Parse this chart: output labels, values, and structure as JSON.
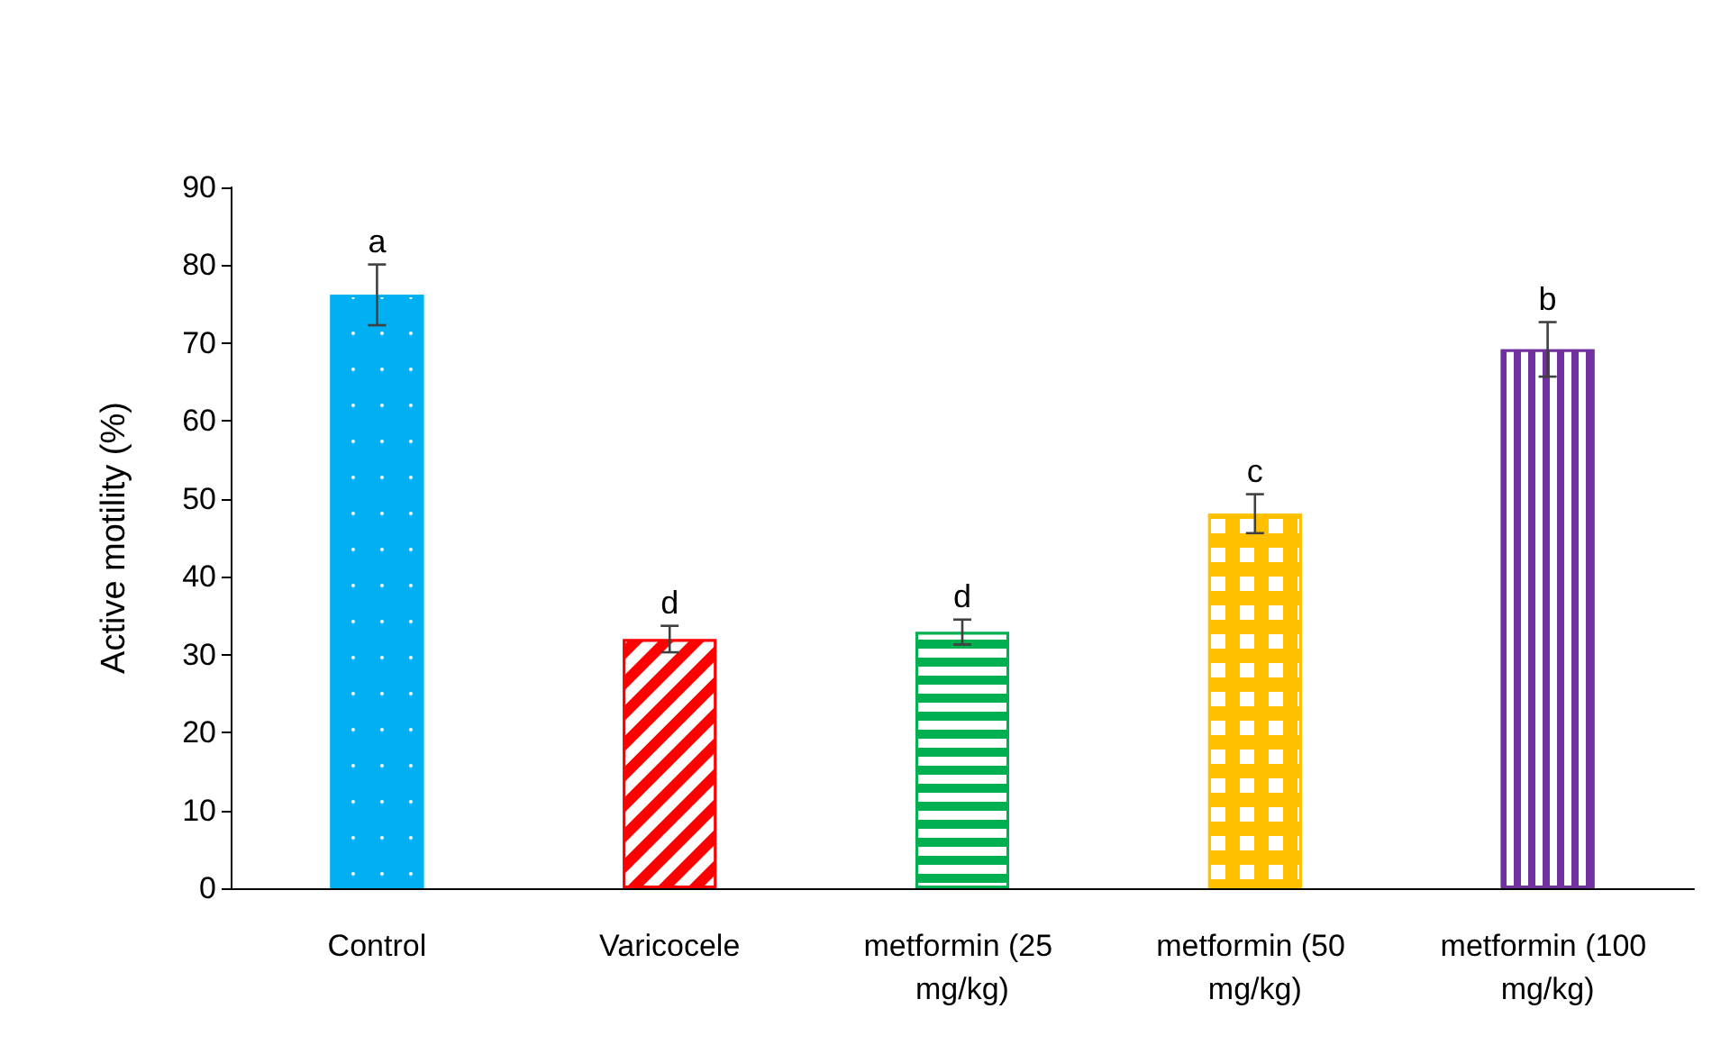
{
  "chart_data": {
    "type": "bar",
    "ylabel": "Active motility (%)",
    "categories": [
      "Control",
      "Varicocele",
      "metformin (25 mg/kg)",
      "metformin (50 mg/kg)",
      "metformin (100 mg/kg)"
    ],
    "values": [
      76.2,
      32,
      32.9,
      48.1,
      69.2
    ],
    "errors": [
      3.9,
      1.7,
      1.6,
      2.5,
      3.5
    ],
    "colors": [
      "#00b0f0",
      "#ff0000",
      "#00b050",
      "#ffc000",
      "#7030a0"
    ],
    "ylim": [
      0,
      90
    ],
    "yticks": [
      0,
      10,
      20,
      30,
      40,
      50,
      60,
      70,
      80,
      90
    ],
    "grid": false,
    "annotations": [
      {
        "text": "a",
        "x": "Control",
        "y": 80.1
      },
      {
        "text": "d",
        "x": "Varicocele",
        "y": 33.7
      },
      {
        "text": "d",
        "x": "metformin (25 mg/kg)",
        "y": 34.5
      },
      {
        "text": "c",
        "x": "metformin (50 mg/kg)",
        "y": 50.6
      },
      {
        "text": "b",
        "x": "metformin (100 mg/kg)",
        "y": 72.7
      }
    ]
  }
}
